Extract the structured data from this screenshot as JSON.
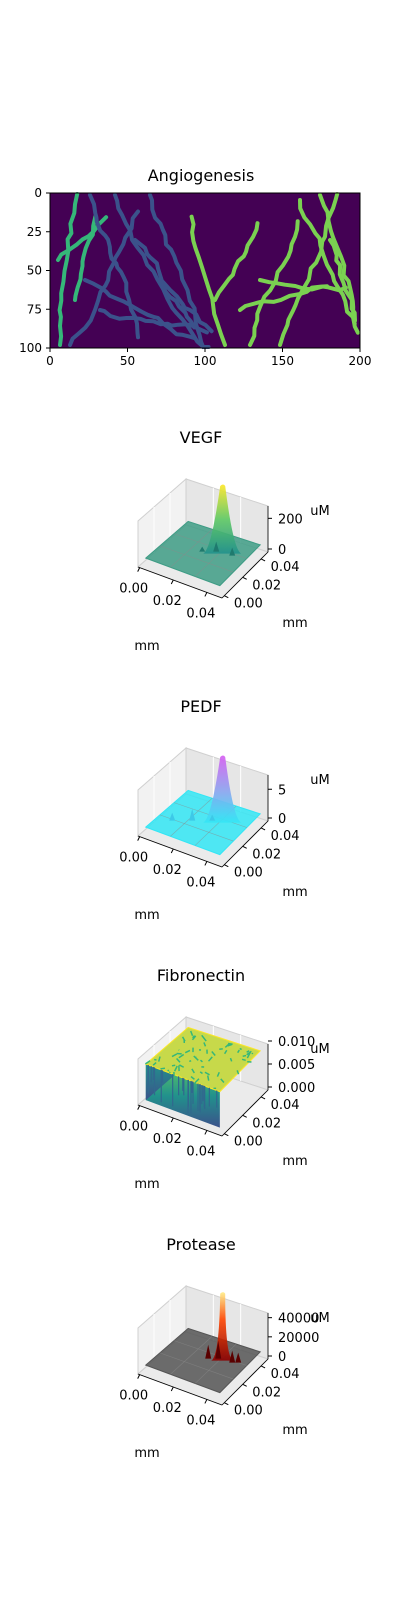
{
  "chart_data": [
    {
      "type": "heatmap",
      "title": "Angiogenesis",
      "xlim": [
        0,
        200
      ],
      "ylim": [
        100,
        0
      ],
      "xticks": [
        "0",
        "50",
        "100",
        "150",
        "200"
      ],
      "yticks": [
        "0",
        "25",
        "50",
        "75",
        "100"
      ],
      "background_color": "#440154",
      "colormap": "viridis",
      "vessel_colors": {
        "left_network": "#3b528b",
        "left_outer": "#35b779",
        "right_network": "#7ad151"
      }
    },
    {
      "type": "surface3d",
      "title": "VEGF",
      "xlabel": "mm",
      "ylabel": "mm",
      "zlabel": "uM",
      "xticks": [
        "0.00",
        "0.02",
        "0.04"
      ],
      "yticks": [
        "0.00",
        "0.02",
        "0.04"
      ],
      "zticks": [
        "0",
        "200"
      ],
      "zlim": [
        0,
        300
      ],
      "peak": {
        "x": 0.035,
        "y": 0.02,
        "z": 290
      },
      "base_color": "#3e9c85",
      "colormap": "viridis"
    },
    {
      "type": "surface3d",
      "title": "PEDF",
      "xlabel": "mm",
      "ylabel": "mm",
      "zlabel": "uM",
      "xticks": [
        "0.00",
        "0.02",
        "0.04"
      ],
      "yticks": [
        "0.00",
        "0.02",
        "0.04"
      ],
      "zticks": [
        "0",
        "5"
      ],
      "zlim": [
        0,
        8
      ],
      "peak": {
        "x": 0.035,
        "y": 0.02,
        "z": 7.5
      },
      "base_color": "#33e6f5",
      "colormap": "cool"
    },
    {
      "type": "surface3d",
      "title": "Fibronectin",
      "xlabel": "mm",
      "ylabel": "mm",
      "zlabel": "uM",
      "xticks": [
        "0.00",
        "0.02",
        "0.04"
      ],
      "yticks": [
        "0.00",
        "0.02",
        "0.04"
      ],
      "zticks": [
        "0.000",
        "0.005",
        "0.010"
      ],
      "zlim": [
        0,
        0.01
      ],
      "plateau": 0.01,
      "colormap": "viridis"
    },
    {
      "type": "surface3d",
      "title": "Protease",
      "xlabel": "mm",
      "ylabel": "mm",
      "zlabel": "uM",
      "xticks": [
        "0.00",
        "0.02",
        "0.04"
      ],
      "yticks": [
        "0.00",
        "0.02",
        "0.04"
      ],
      "zticks": [
        "0",
        "20000",
        "40000"
      ],
      "zlim": [
        0,
        48000
      ],
      "peak": {
        "x": 0.035,
        "y": 0.02,
        "z": 46000
      },
      "base_color": "#555555",
      "colormap": "hot"
    }
  ]
}
